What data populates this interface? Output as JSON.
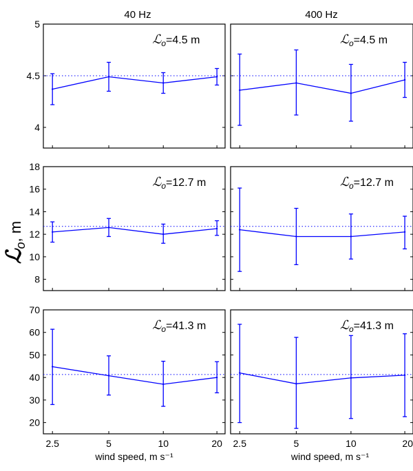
{
  "figure": {
    "y_label": "ℒ",
    "y_label_sub": "o",
    "y_label_unit": ", m"
  },
  "chart_data": [
    {
      "type": "line",
      "column_title": "40 Hz",
      "annotation": "ℒo=4.5 m",
      "reference_value": 4.5,
      "ylim": [
        3.8,
        5
      ],
      "yticks": [
        4,
        4.5,
        5
      ],
      "yticklabels": [
        "4",
        "4.5",
        "5"
      ],
      "x": [
        "2.5",
        "5",
        "10",
        "20"
      ],
      "y": [
        4.37,
        4.49,
        4.43,
        4.49
      ],
      "error_low": [
        4.22,
        4.35,
        4.33,
        4.41
      ],
      "error_high": [
        4.52,
        4.63,
        4.53,
        4.57
      ],
      "xlabel": "",
      "show_xticklabels": false
    },
    {
      "type": "line",
      "column_title": "400 Hz",
      "annotation": "ℒo=4.5 m",
      "reference_value": 4.5,
      "ylim": [
        3.8,
        5
      ],
      "yticks": [
        4,
        4.5,
        5
      ],
      "yticklabels": [],
      "x": [
        "2.5",
        "5",
        "10",
        "20"
      ],
      "y": [
        4.36,
        4.43,
        4.33,
        4.46
      ],
      "error_low": [
        4.02,
        4.12,
        4.06,
        4.29
      ],
      "error_high": [
        4.71,
        4.75,
        4.61,
        4.63
      ],
      "xlabel": "",
      "show_xticklabels": false
    },
    {
      "type": "line",
      "annotation": "ℒo=12.7 m",
      "reference_value": 12.7,
      "ylim": [
        7,
        18
      ],
      "yticks": [
        8,
        10,
        12,
        14,
        16,
        18
      ],
      "yticklabels": [
        "8",
        "10",
        "12",
        "14",
        "16",
        "18"
      ],
      "x": [
        "2.5",
        "5",
        "10",
        "20"
      ],
      "y": [
        12.2,
        12.6,
        12.0,
        12.5
      ],
      "error_low": [
        11.3,
        11.8,
        11.2,
        11.9
      ],
      "error_high": [
        13.1,
        13.4,
        12.9,
        13.2
      ],
      "xlabel": "",
      "show_xticklabels": false
    },
    {
      "type": "line",
      "annotation": "ℒo=12.7 m",
      "reference_value": 12.7,
      "ylim": [
        7,
        18
      ],
      "yticks": [
        8,
        10,
        12,
        14,
        16,
        18
      ],
      "yticklabels": [],
      "x": [
        "2.5",
        "5",
        "10",
        "20"
      ],
      "y": [
        12.4,
        11.8,
        11.8,
        12.2
      ],
      "error_low": [
        8.7,
        9.3,
        9.8,
        10.7
      ],
      "error_high": [
        16.1,
        14.3,
        13.8,
        13.6
      ],
      "xlabel": "",
      "show_xticklabels": false
    },
    {
      "type": "line",
      "annotation": "ℒo=41.3 m",
      "reference_value": 41.3,
      "ylim": [
        15,
        70
      ],
      "yticks": [
        20,
        30,
        40,
        50,
        60,
        70
      ],
      "yticklabels": [
        "20",
        "30",
        "40",
        "50",
        "60",
        "70"
      ],
      "x": [
        "2.5",
        "5",
        "10",
        "20"
      ],
      "y": [
        44.8,
        40.8,
        37.0,
        40.0
      ],
      "error_low": [
        28.0,
        32.2,
        27.2,
        33.2
      ],
      "error_high": [
        61.4,
        49.6,
        47.2,
        47.0
      ],
      "xlabel": "wind speed, m s⁻¹",
      "show_xticklabels": true
    },
    {
      "type": "line",
      "annotation": "ℒo=41.3 m",
      "reference_value": 41.3,
      "ylim": [
        15,
        70
      ],
      "yticks": [
        20,
        30,
        40,
        50,
        60,
        70
      ],
      "yticklabels": [],
      "x": [
        "2.5",
        "5",
        "10",
        "20"
      ],
      "y": [
        42.0,
        37.2,
        39.8,
        41.0
      ],
      "error_low": [
        20.0,
        17.4,
        21.8,
        22.6
      ],
      "error_high": [
        63.6,
        57.8,
        58.6,
        59.4
      ],
      "xlabel": "wind speed, m s⁻¹",
      "show_xticklabels": true
    }
  ]
}
